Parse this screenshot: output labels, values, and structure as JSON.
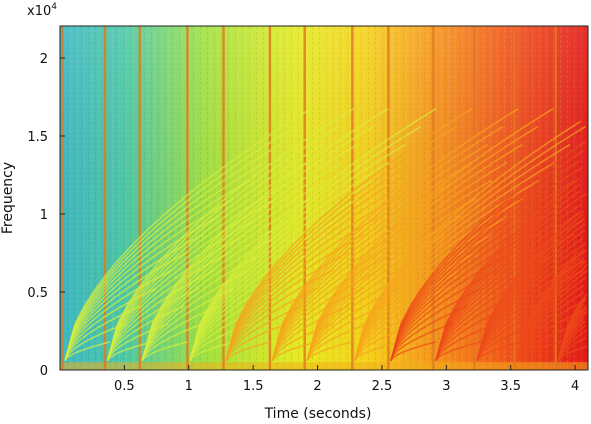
{
  "chart_data": {
    "type": "heatmap",
    "title": "",
    "xlabel": "Time (seconds)",
    "ylabel": "Frequency",
    "y_multiplier": "x10",
    "y_multiplier_exp": "4",
    "xlim": [
      0,
      4.1
    ],
    "ylim": [
      0,
      22050
    ],
    "x_ticks": [
      {
        "value": 0.5,
        "label": "0.5"
      },
      {
        "value": 1.0,
        "label": "1"
      },
      {
        "value": 1.5,
        "label": "1.5"
      },
      {
        "value": 2.0,
        "label": "2"
      },
      {
        "value": 2.5,
        "label": "2.5"
      },
      {
        "value": 3.0,
        "label": "3"
      },
      {
        "value": 3.5,
        "label": "3.5"
      },
      {
        "value": 4.0,
        "label": "4"
      }
    ],
    "y_ticks": [
      {
        "value": 0,
        "label": "0"
      },
      {
        "value": 5000,
        "label": "0.5"
      },
      {
        "value": 10000,
        "label": "1"
      },
      {
        "value": 15000,
        "label": "1.5"
      },
      {
        "value": 20000,
        "label": "2"
      }
    ],
    "grid": false,
    "colormap": "jet",
    "colors": {
      "low": "#1a78d8",
      "mid_low": "#3ec7b8",
      "mid": "#a6e43a",
      "mid_high": "#f3e81a",
      "high": "#f57a1a",
      "max": "#e8161a"
    },
    "onsets": [
      0.02,
      0.35,
      0.62,
      0.99,
      1.27,
      1.63,
      1.9,
      2.27,
      2.55,
      2.9,
      3.22,
      3.53,
      3.85
    ],
    "sweep_curves": 14
  }
}
